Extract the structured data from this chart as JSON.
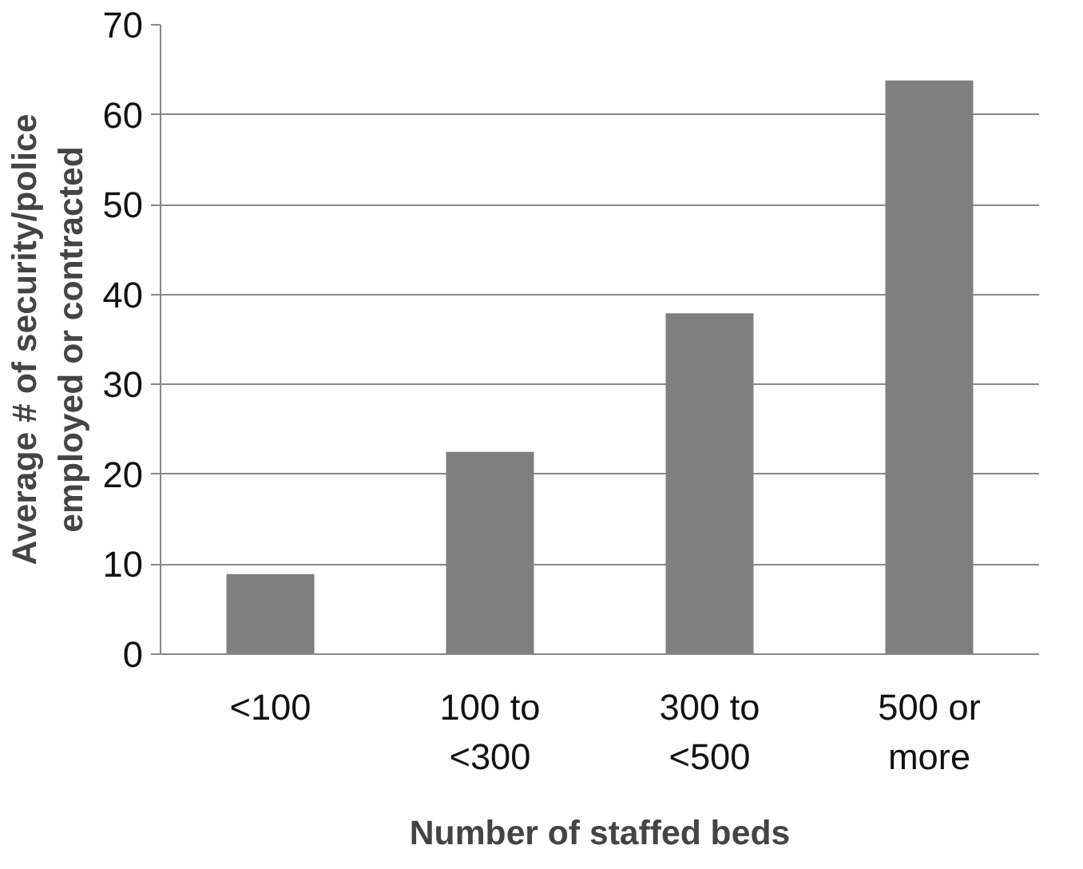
{
  "chart_data": {
    "type": "bar",
    "xlabel": "Number of staffed beds",
    "ylabel": "Average # of security/police\nemployed or contracted",
    "categories": [
      "<100",
      "100 to\n<300",
      "300 to\n<500",
      "500 or\nmore"
    ],
    "values": [
      8.9,
      22.5,
      37.9,
      63.8
    ],
    "color": "#7f7f7f",
    "ylim": [
      0,
      70
    ],
    "yticks": [
      0,
      10,
      20,
      30,
      40,
      50,
      60,
      70
    ],
    "grid": "y"
  }
}
